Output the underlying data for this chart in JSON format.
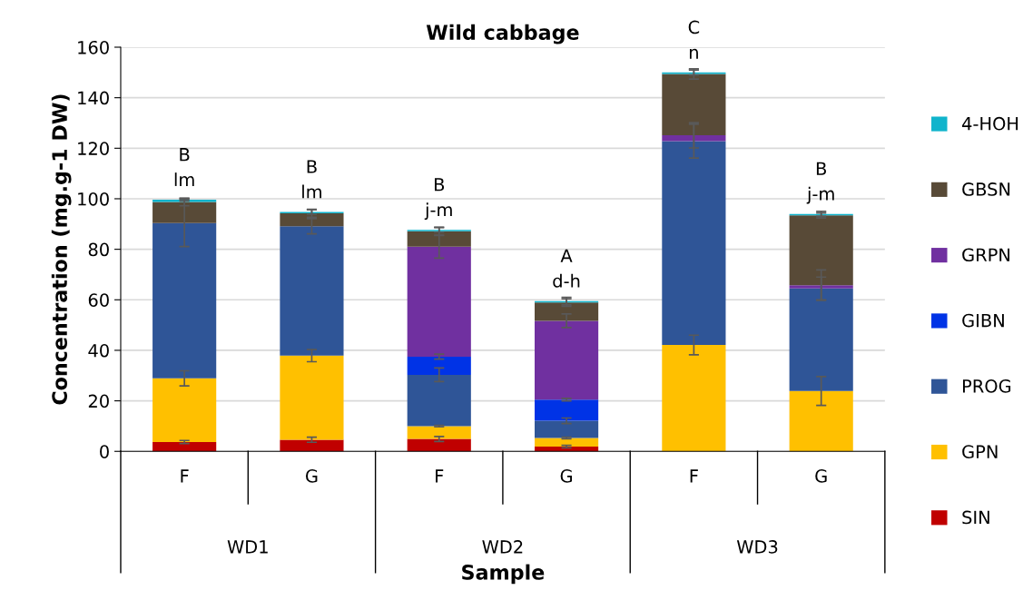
{
  "chart_data": {
    "type": "bar",
    "stacked": true,
    "title": "Wild cabbage",
    "xlabel": "Sample",
    "ylabel": "Concentration (mg.g-1 DW)",
    "categories": [
      "F",
      "G",
      "F",
      "G",
      "F",
      "G"
    ],
    "series": [
      {
        "name": "SIN",
        "color": "#c00000",
        "values": [
          3.7,
          4.6,
          4.9,
          1.9,
          0,
          0
        ],
        "errors": [
          0.6,
          1,
          1,
          0.5,
          null,
          null
        ]
      },
      {
        "name": "GPN",
        "color": "#ffc000",
        "values": [
          25.2,
          33.3,
          5.1,
          3.4,
          42.1,
          23.9
        ],
        "errors": [
          3,
          2.4,
          0.3,
          0.3,
          3.9,
          5.7
        ]
      },
      {
        "name": "PROG",
        "color": "#2f5597",
        "values": [
          61.5,
          51.2,
          20.3,
          6.8,
          80.7,
          40.6
        ],
        "errors": [
          9.3,
          3,
          2.7,
          1.1,
          6.7,
          4.5
        ]
      },
      {
        "name": "GIBN",
        "color": "#0033e6",
        "values": [
          0,
          0,
          7.2,
          8.4,
          0,
          0
        ],
        "errors": [
          null,
          null,
          1,
          0.5,
          null,
          null
        ]
      },
      {
        "name": "GRPN",
        "color": "#7030a0",
        "values": [
          0,
          0,
          43.5,
          31.2,
          2.3,
          1.3
        ],
        "errors": [
          null,
          null,
          4.5,
          2.7,
          5,
          6
        ]
      },
      {
        "name": "GBSN",
        "color": "#584a37",
        "values": [
          8.3,
          5.1,
          6.1,
          7.2,
          24.3,
          27.6
        ],
        "errors": [
          1.5,
          1.5,
          1.5,
          1.5,
          2,
          1
        ]
      },
      {
        "name": "4-HOH",
        "color": "#10b4cc",
        "values": [
          0.9,
          0.6,
          0.6,
          0.6,
          0.6,
          0.6
        ],
        "errors": [
          0.5,
          1,
          1,
          1.5,
          1,
          1
        ]
      }
    ],
    "ylim": [
      0,
      160
    ],
    "yticks": [
      0,
      20,
      40,
      60,
      80,
      100,
      120,
      140,
      160
    ],
    "grid": "y",
    "legend": "right",
    "annotations": [
      "B\nlm",
      "B\nlm",
      "B\nj-m",
      "A\nd-h",
      "C\nn",
      "B\nj-m",
      "WD1",
      "WD2",
      "WD3"
    ]
  }
}
